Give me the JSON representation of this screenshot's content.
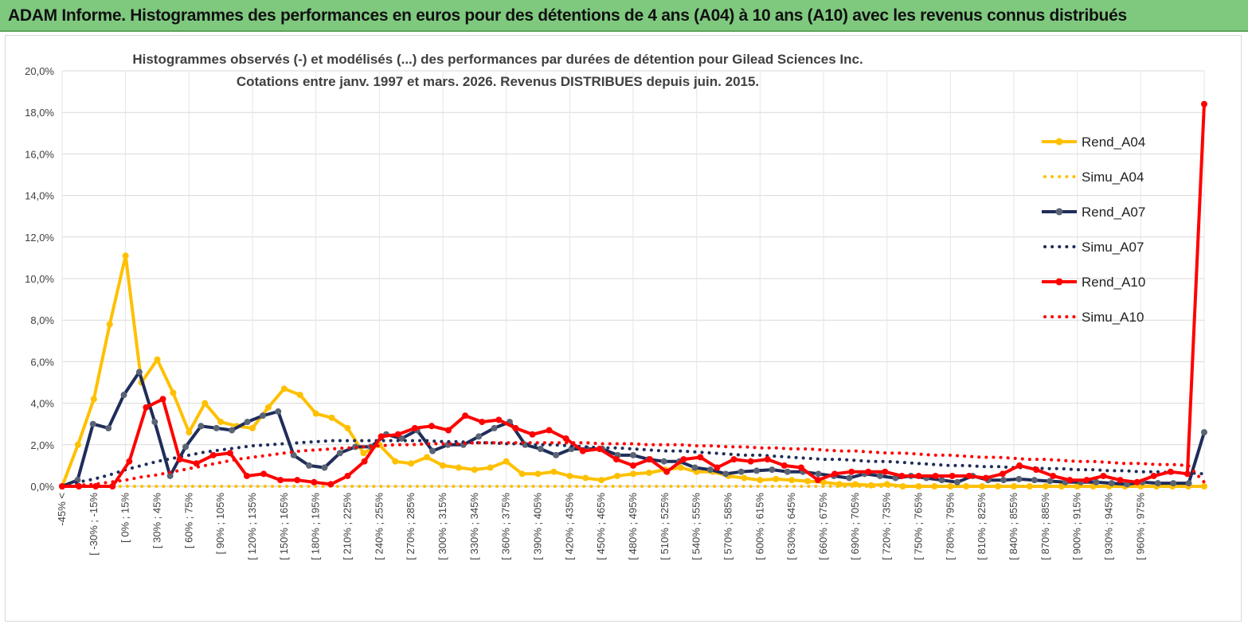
{
  "header": {
    "title": "ADAM Informe. Histogrammes des performances en euros pour des détentions de 4 ans (A04) à 10 ans (A10) avec les revenus connus distribués"
  },
  "chart_data": {
    "type": "line",
    "title": "Histogrammes observés (-)  et modélisés (...) des performances par durées de détention pour Gilead Sciences Inc.",
    "subtitle": "Cotations entre janv. 1997 et mars.  2026. Revenus DISTRIBUES depuis juin. 2015.",
    "ylim": [
      0,
      20
    ],
    "ytick_labels": [
      "0,0%",
      "2,0%",
      "4,0%",
      "6,0%",
      "8,0%",
      "10,0%",
      "12,0%",
      "14,0%",
      "16,0%",
      "18,0%",
      "20,0%"
    ],
    "x_tick_labels": [
      "-45% <",
      "[ -30% ; -15%",
      "[ 0% ; 15%",
      "[ 30% ; 45%",
      "[ 60% ; 75%",
      "[ 90% ; 105%",
      "[ 120% ; 135%",
      "[ 150% ; 165%",
      "[ 180% ; 195%",
      "[ 210% ; 225%",
      "[ 240% ; 255%",
      "[ 270% ; 285%",
      "[ 300% ; 315%",
      "[ 330% ; 345%",
      "[ 360% ; 375%",
      "[ 390% ; 405%",
      "[ 420% ; 435%",
      "[ 450% ; 465%",
      "[ 480% ; 495%",
      "[ 510% ; 525%",
      "[ 540% ; 555%",
      "[ 570% ; 585%",
      "[ 600% ; 615%",
      "[ 630% ; 645%",
      "[ 660% ; 675%",
      "[ 690% ; 705%",
      "[ 720% ; 735%",
      "[ 750% ; 765%",
      "[ 780% ; 795%",
      "[ 810% ; 825%",
      "[ 840% ; 855%",
      "[ 870% ; 885%",
      "[ 900% ; 915%",
      "[ 930% ; 945%",
      "[ 960% ; 975%"
    ],
    "grid": true,
    "legend_position": "right",
    "series": [
      {
        "name": "Rend_A04",
        "style": "solid",
        "color": "#ffc000",
        "values": [
          0,
          2,
          4.2,
          7.8,
          11.1,
          5,
          6.1,
          4.5,
          2.6,
          4,
          3.1,
          2.9,
          2.8,
          3.8,
          4.7,
          4.4,
          3.5,
          3.3,
          2.8,
          1.6,
          2,
          1.2,
          1.1,
          1.4,
          1,
          0.9,
          0.8,
          0.9,
          1.2,
          0.6,
          0.6,
          0.7,
          0.5,
          0.4,
          0.3,
          0.5,
          0.6,
          0.65,
          0.8,
          0.9,
          0.7,
          0.7,
          0.5,
          0.4,
          0.3,
          0.35,
          0.3,
          0.25,
          0.2,
          0.1,
          0.1,
          0.05,
          0.1,
          0,
          0,
          0,
          0,
          0,
          0,
          0,
          0,
          0,
          0,
          0,
          0,
          0,
          0,
          0,
          0,
          0,
          0,
          0,
          0
        ]
      },
      {
        "name": "Simu_A04",
        "style": "dotted",
        "color": "#ffc000",
        "values": [
          0,
          0,
          0,
          0,
          0,
          0,
          0,
          0,
          0,
          0,
          0,
          0,
          0,
          0,
          0,
          0,
          0,
          0,
          0,
          0,
          0,
          0,
          0,
          0,
          0,
          0,
          0,
          0,
          0,
          0,
          0,
          0,
          0,
          0,
          0,
          0,
          0,
          0,
          0,
          0,
          0,
          0,
          0,
          0,
          0,
          0,
          0,
          0,
          0,
          0,
          0,
          0,
          0,
          0,
          0,
          0,
          0,
          0,
          0,
          0,
          0,
          0,
          0,
          0,
          0,
          0,
          0,
          0,
          0,
          0,
          0,
          0,
          0
        ]
      },
      {
        "name": "Rend_A07",
        "style": "solid",
        "color": "#1f2d5a",
        "values": [
          0,
          0.3,
          3,
          2.8,
          4.4,
          5.5,
          3.1,
          0.5,
          1.9,
          2.9,
          2.8,
          2.7,
          3.1,
          3.4,
          3.6,
          1.5,
          1,
          0.9,
          1.6,
          1.9,
          1.9,
          2.5,
          2.3,
          2.7,
          1.7,
          2,
          2,
          2.4,
          2.8,
          3.1,
          2,
          1.8,
          1.5,
          1.8,
          1.8,
          1.8,
          1.5,
          1.5,
          1.3,
          1.2,
          1.2,
          0.9,
          0.8,
          0.6,
          0.7,
          0.75,
          0.8,
          0.7,
          0.7,
          0.6,
          0.5,
          0.4,
          0.6,
          0.5,
          0.4,
          0.5,
          0.4,
          0.3,
          0.2,
          0.5,
          0.3,
          0.3,
          0.35,
          0.3,
          0.25,
          0.2,
          0.2,
          0.2,
          0.15,
          0.1,
          0.2,
          0.15,
          0.15,
          0.15,
          2.6
        ]
      },
      {
        "name": "Simu_A07",
        "style": "dotted",
        "color": "#1f2d5a",
        "values": [
          0,
          0.2,
          0.35,
          0.55,
          0.8,
          1,
          1.2,
          1.35,
          1.5,
          1.65,
          1.75,
          1.85,
          1.95,
          2,
          2.05,
          2.1,
          2.15,
          2.2,
          2.2,
          2.2,
          2.2,
          2.2,
          2.2,
          2.2,
          2.15,
          2.15,
          2.1,
          2.1,
          2.05,
          2.05,
          2,
          2,
          1.95,
          1.9,
          1.85,
          1.85,
          1.8,
          1.75,
          1.7,
          1.7,
          1.65,
          1.6,
          1.55,
          1.5,
          1.5,
          1.45,
          1.4,
          1.35,
          1.3,
          1.3,
          1.25,
          1.2,
          1.2,
          1.15,
          1.1,
          1.05,
          1,
          1,
          0.95,
          0.95,
          0.9,
          0.9,
          0.85,
          0.85,
          0.8,
          0.8,
          0.75,
          0.75,
          0.7,
          0.7,
          0.65,
          0.65,
          0.6
        ]
      },
      {
        "name": "Rend_A10",
        "style": "solid",
        "color": "#ff0000",
        "values": [
          0,
          0,
          0,
          0,
          1.2,
          3.8,
          4.2,
          1.3,
          1.1,
          1.5,
          1.6,
          0.5,
          0.6,
          0.3,
          0.3,
          0.2,
          0.1,
          0.5,
          1.2,
          2.4,
          2.5,
          2.8,
          2.9,
          2.7,
          3.4,
          3.1,
          3.2,
          2.8,
          2.5,
          2.7,
          2.3,
          1.7,
          1.8,
          1.3,
          1,
          1.3,
          0.7,
          1.3,
          1.4,
          0.9,
          1.3,
          1.2,
          1.3,
          1,
          0.9,
          0.3,
          0.6,
          0.7,
          0.7,
          0.7,
          0.5,
          0.5,
          0.5,
          0.5,
          0.5,
          0.4,
          0.6,
          1,
          0.8,
          0.5,
          0.3,
          0.3,
          0.5,
          0.3,
          0.2,
          0.5,
          0.7,
          0.6,
          18.4
        ]
      },
      {
        "name": "Simu_A10",
        "style": "dotted",
        "color": "#ff0000",
        "values": [
          0,
          0.05,
          0.1,
          0.2,
          0.3,
          0.45,
          0.55,
          0.7,
          0.85,
          1,
          1.15,
          1.3,
          1.4,
          1.5,
          1.6,
          1.7,
          1.75,
          1.8,
          1.85,
          1.9,
          1.95,
          2,
          2,
          2.05,
          2.05,
          2.05,
          2.1,
          2.1,
          2.1,
          2.1,
          2.1,
          2.1,
          2.1,
          2.1,
          2.05,
          2.05,
          2.05,
          2,
          2,
          2,
          1.95,
          1.95,
          1.9,
          1.9,
          1.85,
          1.85,
          1.8,
          1.8,
          1.75,
          1.7,
          1.7,
          1.65,
          1.6,
          1.6,
          1.55,
          1.5,
          1.5,
          1.45,
          1.4,
          1.4,
          1.35,
          1.3,
          1.3,
          1.25,
          1.2,
          1.2,
          1.15,
          1.1,
          1.1,
          1.05,
          1.05,
          1,
          0.2
        ]
      }
    ]
  }
}
